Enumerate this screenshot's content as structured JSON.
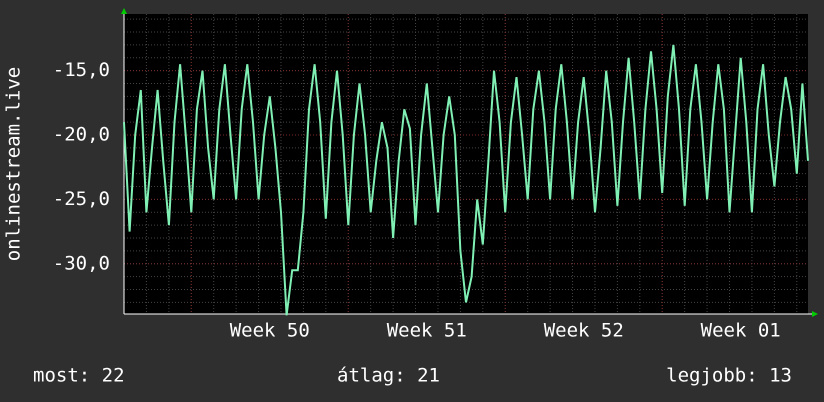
{
  "chart_data": {
    "type": "line",
    "ylabel": "onlinestream.live",
    "x": [
      0,
      0.25,
      0.5,
      0.75,
      1,
      1.25,
      1.5,
      1.75,
      2,
      2.25,
      2.5,
      2.75,
      3,
      3.25,
      3.5,
      3.75,
      4,
      4.25,
      4.5,
      4.75,
      5,
      5.25,
      5.5,
      5.75,
      6,
      6.25,
      6.5,
      6.75,
      7,
      7.25,
      7.5,
      7.75,
      8,
      8.25,
      8.5,
      8.75,
      9,
      9.25,
      9.5,
      9.75,
      10,
      10.25,
      10.5,
      10.75,
      11,
      11.25,
      11.5,
      11.75,
      12,
      12.25,
      12.5,
      12.75,
      13,
      13.25,
      13.5,
      13.75,
      14,
      14.25,
      14.5,
      14.75,
      15,
      15.25,
      15.5,
      15.75,
      16,
      16.25,
      16.5,
      16.75,
      17,
      17.25,
      17.5,
      17.75,
      18,
      18.25,
      18.5,
      18.75,
      19,
      19.25,
      19.5,
      19.75,
      20,
      20.25,
      20.5,
      20.75,
      21,
      21.25,
      21.5,
      21.75,
      22,
      22.25,
      22.5,
      22.75,
      23,
      23.25,
      23.5,
      23.75,
      24,
      24.25,
      24.5,
      24.75,
      25,
      25.25,
      25.5,
      25.75,
      26,
      26.25,
      26.5,
      26.75,
      27,
      27.25,
      27.5,
      27.75,
      28,
      28.25,
      28.5,
      28.75,
      29,
      29.25,
      29.5,
      29.75,
      30,
      30.25,
      30.5
    ],
    "series": [
      {
        "name": "onlinestream.live",
        "color": "#80f0b4",
        "values": [
          -19,
          -27.5,
          -20,
          -16.5,
          -26,
          -21,
          -16.5,
          -22,
          -27,
          -19,
          -14.5,
          -20,
          -26,
          -18,
          -15,
          -21,
          -25,
          -18,
          -14.5,
          -20,
          -25,
          -18,
          -14.5,
          -19,
          -25,
          -20,
          -17,
          -21,
          -26,
          -34,
          -30.5,
          -30.5,
          -26,
          -18,
          -14.5,
          -19,
          -26.5,
          -19,
          -15,
          -20,
          -27,
          -20,
          -16,
          -20,
          -26,
          -22,
          -19,
          -21,
          -28,
          -22,
          -18,
          -19.5,
          -27,
          -20,
          -16,
          -21,
          -26,
          -20,
          -17,
          -20,
          -29,
          -33,
          -31,
          -25,
          -28.5,
          -22,
          -15,
          -19,
          -26,
          -19,
          -15.5,
          -20,
          -25,
          -18,
          -15,
          -19,
          -25,
          -18,
          -14.5,
          -19,
          -25,
          -19,
          -15.5,
          -20,
          -26,
          -21,
          -15,
          -19,
          -25.5,
          -19,
          -14,
          -19,
          -25,
          -18,
          -13.5,
          -18,
          -24.5,
          -17,
          -13,
          -18,
          -25.5,
          -18,
          -14.5,
          -19,
          -25,
          -19,
          -14.5,
          -18,
          -26,
          -20,
          -14,
          -19,
          -26,
          -18,
          -14.5,
          -20,
          -24,
          -19,
          -15.5,
          -18,
          -23,
          -16,
          -22
        ]
      }
    ],
    "xlim": [
      0,
      30.5
    ],
    "xticks": [
      {
        "value": 6.5,
        "label": "Week 50"
      },
      {
        "value": 13.5,
        "label": "Week 51"
      },
      {
        "value": 20.5,
        "label": "Week 52"
      },
      {
        "value": 27.5,
        "label": "Week 01"
      }
    ],
    "ylim": [
      -33.9,
      -10.6
    ],
    "yticks": [
      {
        "value": -15,
        "label": "-15,0"
      },
      {
        "value": -20,
        "label": "-20,0"
      },
      {
        "value": -25,
        "label": "-25,0"
      },
      {
        "value": -30,
        "label": "-30,0"
      }
    ],
    "grid": true
  },
  "footer": {
    "current": "most: 22",
    "average": "átlag: 21",
    "best": "legjobb: 13"
  }
}
